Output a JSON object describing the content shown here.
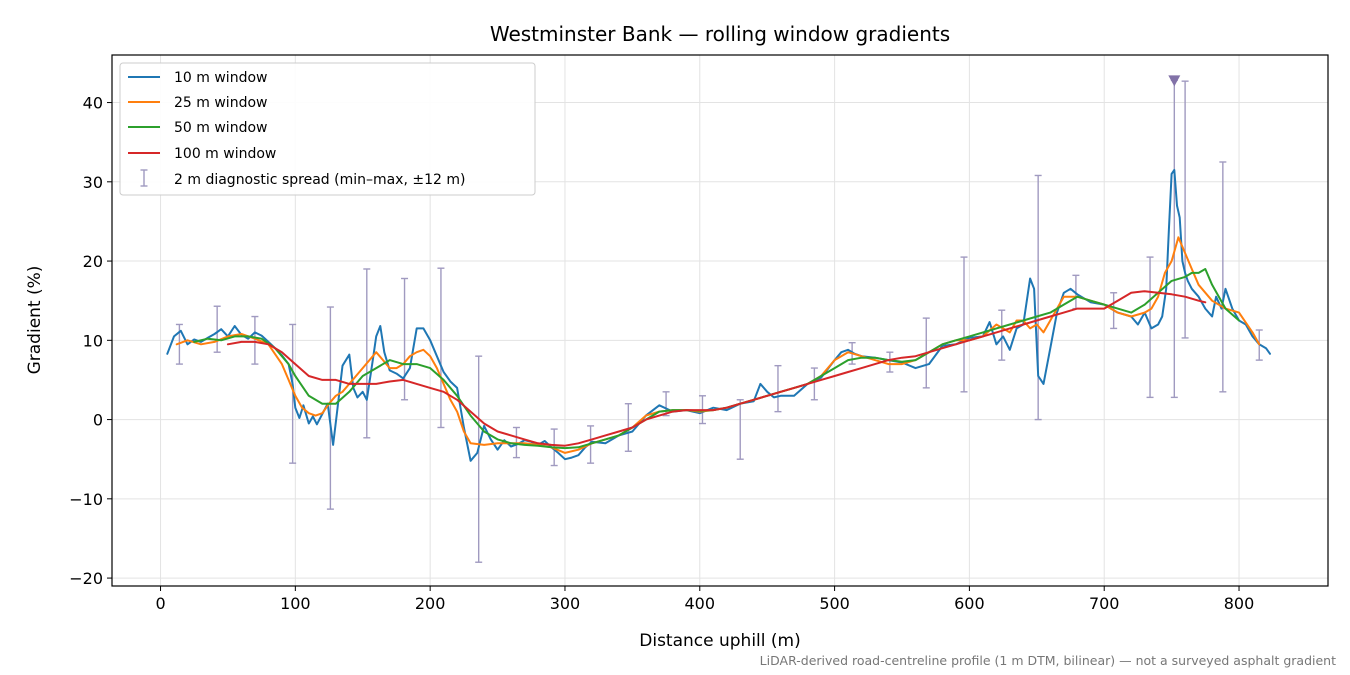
{
  "chart_data": {
    "type": "line",
    "title": "Westminster Bank — rolling window gradients",
    "xlabel": "Distance uphill (m)",
    "ylabel": "Gradient (%)",
    "footnote": "LiDAR-derived road-centreline profile (1 m DTM, bilinear) — not a surveyed asphalt gradient",
    "xlim": [
      -36,
      866
    ],
    "ylim": [
      -21,
      46
    ],
    "xticks": [
      0,
      100,
      200,
      300,
      400,
      500,
      600,
      700,
      800
    ],
    "yticks": [
      -20,
      -10,
      0,
      10,
      20,
      30,
      40
    ],
    "grid": true,
    "legend_position": "upper-left",
    "series": [
      {
        "name": "10 m window",
        "color": "#1f77b4",
        "x": [
          5,
          10,
          15,
          20,
          25,
          30,
          35,
          40,
          45,
          50,
          55,
          60,
          65,
          70,
          75,
          80,
          85,
          90,
          95,
          98,
          100,
          103,
          106,
          110,
          113,
          116,
          120,
          124,
          128,
          131,
          135,
          140,
          143,
          146,
          150,
          153,
          157,
          160,
          163,
          166,
          170,
          175,
          180,
          185,
          190,
          195,
          200,
          205,
          210,
          215,
          220,
          225,
          230,
          235,
          240,
          245,
          250,
          255,
          260,
          265,
          270,
          275,
          280,
          285,
          290,
          295,
          300,
          305,
          310,
          315,
          320,
          330,
          340,
          350,
          360,
          370,
          380,
          390,
          400,
          410,
          420,
          430,
          440,
          445,
          450,
          455,
          460,
          470,
          480,
          490,
          500,
          505,
          510,
          515,
          520,
          530,
          540,
          550,
          560,
          570,
          580,
          590,
          600,
          610,
          615,
          620,
          625,
          630,
          635,
          640,
          645,
          648,
          651,
          655,
          660,
          665,
          670,
          675,
          680,
          690,
          700,
          710,
          720,
          725,
          730,
          735,
          740,
          743,
          746,
          748,
          750,
          752,
          754,
          756,
          758,
          760,
          762,
          765,
          770,
          775,
          780,
          783,
          787,
          790,
          795,
          800,
          805,
          810,
          815,
          820,
          823
        ],
        "y": [
          8.3,
          10.5,
          11.2,
          9.5,
          10.1,
          9.8,
          10.3,
          10.8,
          11.4,
          10.5,
          11.8,
          10.7,
          10.2,
          11.0,
          10.6,
          9.8,
          9.0,
          8.1,
          7.0,
          4.5,
          1.5,
          0.2,
          1.8,
          -0.5,
          0.4,
          -0.6,
          0.7,
          2.0,
          -3.2,
          1.0,
          6.8,
          8.2,
          4.0,
          2.8,
          3.5,
          2.5,
          7.0,
          10.5,
          11.8,
          8.5,
          6.2,
          5.8,
          5.2,
          6.5,
          11.5,
          11.5,
          10.0,
          8.0,
          6.0,
          4.8,
          4.0,
          -1.0,
          -5.2,
          -4.2,
          -0.8,
          -2.5,
          -3.8,
          -2.6,
          -3.4,
          -3.1,
          -2.6,
          -2.8,
          -3.2,
          -2.7,
          -3.5,
          -4.2,
          -5.0,
          -4.8,
          -4.5,
          -3.5,
          -2.8,
          -3.0,
          -2.0,
          -1.5,
          0.5,
          1.8,
          1.0,
          1.2,
          0.8,
          1.5,
          1.2,
          2.0,
          2.3,
          4.5,
          3.5,
          2.8,
          3.0,
          3.0,
          4.5,
          5.3,
          7.5,
          8.5,
          8.8,
          8.3,
          8.0,
          7.8,
          7.5,
          7.2,
          6.5,
          7.0,
          9.3,
          9.5,
          10.3,
          10.5,
          12.3,
          9.5,
          10.5,
          8.8,
          11.5,
          12.0,
          17.8,
          16.5,
          5.5,
          4.5,
          9.0,
          13.5,
          16.0,
          16.5,
          15.8,
          14.8,
          14.5,
          13.5,
          13.0,
          12.0,
          13.5,
          11.5,
          12.0,
          13.0,
          16.5,
          24.0,
          31.0,
          31.5,
          27.0,
          25.5,
          20.0,
          18.5,
          17.5,
          16.5,
          15.5,
          14.0,
          13.0,
          15.5,
          14.0,
          16.5,
          14.0,
          12.5,
          12.0,
          10.5,
          9.5,
          9.0,
          8.3
        ]
      },
      {
        "name": "25 m window",
        "color": "#ff7f0e",
        "x": [
          12,
          20,
          30,
          40,
          50,
          60,
          70,
          80,
          90,
          95,
          100,
          105,
          110,
          115,
          120,
          125,
          130,
          135,
          140,
          145,
          150,
          155,
          160,
          165,
          170,
          175,
          180,
          185,
          190,
          195,
          200,
          205,
          210,
          215,
          220,
          225,
          230,
          240,
          250,
          260,
          270,
          280,
          290,
          300,
          310,
          320,
          330,
          340,
          350,
          360,
          370,
          380,
          390,
          400,
          410,
          420,
          430,
          440,
          450,
          460,
          470,
          480,
          490,
          500,
          510,
          520,
          530,
          540,
          550,
          560,
          570,
          580,
          590,
          600,
          610,
          620,
          630,
          635,
          640,
          645,
          650,
          655,
          660,
          665,
          670,
          680,
          690,
          700,
          710,
          720,
          730,
          735,
          740,
          745,
          750,
          755,
          760,
          765,
          770,
          780,
          790,
          800,
          810,
          815
        ],
        "y": [
          9.5,
          10.0,
          9.5,
          9.8,
          10.5,
          10.8,
          10.2,
          9.5,
          7.0,
          5.0,
          3.0,
          1.5,
          0.8,
          0.5,
          0.8,
          2.0,
          3.0,
          3.5,
          4.5,
          5.5,
          6.5,
          7.5,
          8.5,
          7.5,
          6.5,
          6.5,
          7.0,
          8.0,
          8.5,
          8.8,
          8.0,
          6.5,
          4.5,
          2.5,
          1.0,
          -1.5,
          -3.0,
          -3.2,
          -3.0,
          -3.0,
          -3.0,
          -3.2,
          -3.5,
          -4.2,
          -3.8,
          -3.0,
          -2.5,
          -2.0,
          -1.0,
          0.5,
          1.0,
          1.2,
          1.2,
          1.0,
          1.2,
          1.5,
          2.0,
          2.5,
          3.0,
          3.5,
          4.0,
          4.5,
          5.5,
          7.5,
          8.5,
          8.0,
          7.5,
          7.0,
          7.0,
          7.5,
          8.5,
          9.5,
          10.0,
          10.0,
          10.5,
          12.0,
          11.0,
          12.5,
          12.5,
          11.5,
          12.0,
          11.0,
          12.5,
          14.0,
          15.5,
          15.5,
          15.0,
          14.5,
          13.5,
          13.0,
          13.5,
          14.0,
          15.5,
          18.5,
          20.0,
          23.0,
          21.0,
          19.0,
          17.0,
          15.0,
          14.0,
          13.5,
          11.0,
          9.5
        ]
      },
      {
        "name": "50 m window",
        "color": "#2ca02c",
        "x": [
          25,
          35,
          45,
          55,
          65,
          75,
          85,
          95,
          100,
          110,
          120,
          130,
          140,
          150,
          160,
          170,
          180,
          190,
          200,
          210,
          220,
          230,
          240,
          250,
          260,
          270,
          280,
          290,
          300,
          310,
          320,
          330,
          340,
          350,
          360,
          370,
          380,
          390,
          400,
          410,
          420,
          430,
          440,
          450,
          460,
          470,
          480,
          490,
          500,
          510,
          520,
          530,
          540,
          550,
          560,
          570,
          580,
          590,
          600,
          610,
          620,
          630,
          640,
          650,
          660,
          670,
          680,
          690,
          700,
          710,
          720,
          730,
          740,
          750,
          760,
          765,
          770,
          775,
          780,
          790,
          800
        ],
        "y": [
          9.8,
          10.2,
          10.0,
          10.5,
          10.5,
          10.2,
          9.0,
          7.0,
          5.5,
          3.0,
          2.0,
          2.0,
          3.5,
          5.5,
          6.5,
          7.5,
          7.0,
          7.0,
          6.5,
          5.0,
          3.0,
          0.5,
          -1.5,
          -2.5,
          -3.0,
          -3.2,
          -3.3,
          -3.5,
          -3.6,
          -3.5,
          -3.0,
          -2.5,
          -2.0,
          -1.0,
          0.0,
          1.0,
          1.2,
          1.2,
          1.1,
          1.2,
          1.5,
          2.0,
          2.5,
          3.0,
          3.5,
          4.0,
          4.5,
          5.5,
          6.5,
          7.5,
          7.8,
          7.8,
          7.5,
          7.3,
          7.5,
          8.5,
          9.5,
          10.0,
          10.5,
          11.0,
          11.5,
          12.0,
          12.5,
          13.0,
          13.5,
          14.5,
          15.5,
          15.0,
          14.5,
          14.0,
          13.5,
          14.5,
          16.0,
          17.5,
          18.0,
          18.5,
          18.5,
          19.0,
          17.0,
          14.0,
          12.5
        ]
      },
      {
        "name": "100 m window",
        "color": "#d62728",
        "x": [
          50,
          60,
          70,
          80,
          90,
          100,
          110,
          120,
          130,
          140,
          150,
          160,
          170,
          180,
          190,
          200,
          210,
          220,
          230,
          240,
          250,
          260,
          270,
          280,
          290,
          300,
          310,
          320,
          330,
          340,
          350,
          360,
          370,
          380,
          390,
          400,
          410,
          420,
          430,
          440,
          450,
          460,
          470,
          480,
          490,
          500,
          510,
          520,
          530,
          540,
          550,
          560,
          570,
          580,
          590,
          600,
          610,
          620,
          630,
          640,
          650,
          660,
          670,
          680,
          690,
          700,
          710,
          720,
          730,
          740,
          750,
          760,
          770,
          775
        ],
        "y": [
          9.5,
          9.8,
          9.8,
          9.5,
          8.5,
          7.0,
          5.5,
          5.0,
          5.0,
          4.5,
          4.5,
          4.5,
          4.8,
          5.0,
          4.5,
          4.0,
          3.5,
          2.5,
          1.0,
          -0.5,
          -1.5,
          -2.0,
          -2.5,
          -3.0,
          -3.2,
          -3.3,
          -3.0,
          -2.5,
          -2.0,
          -1.5,
          -1.0,
          0.0,
          0.5,
          1.0,
          1.2,
          1.2,
          1.2,
          1.5,
          2.0,
          2.5,
          3.0,
          3.5,
          4.0,
          4.5,
          5.0,
          5.5,
          6.0,
          6.5,
          7.0,
          7.5,
          7.8,
          8.0,
          8.5,
          9.0,
          9.5,
          10.0,
          10.5,
          11.0,
          11.5,
          12.0,
          12.5,
          13.0,
          13.5,
          14.0,
          14.0,
          14.0,
          15.0,
          16.0,
          16.2,
          16.0,
          15.8,
          15.5,
          15.0,
          14.8
        ]
      }
    ],
    "errorbars": {
      "name": "2 m diagnostic spread (min–max, ±12 m)",
      "color": "#a09ac0",
      "points": [
        {
          "x": 14,
          "min": 7.0,
          "max": 12.0
        },
        {
          "x": 42,
          "min": 8.5,
          "max": 14.3
        },
        {
          "x": 70,
          "min": 7.0,
          "max": 13.0
        },
        {
          "x": 98,
          "min": -5.5,
          "max": 12.0
        },
        {
          "x": 126,
          "min": -11.3,
          "max": 14.2
        },
        {
          "x": 153,
          "min": -2.3,
          "max": 19.0
        },
        {
          "x": 181,
          "min": 2.5,
          "max": 17.8
        },
        {
          "x": 208,
          "min": -1.0,
          "max": 19.1
        },
        {
          "x": 236,
          "min": -18.0,
          "max": 8.0
        },
        {
          "x": 264,
          "min": -4.8,
          "max": -1.0
        },
        {
          "x": 292,
          "min": -5.8,
          "max": -1.2
        },
        {
          "x": 319,
          "min": -5.5,
          "max": -0.8
        },
        {
          "x": 347,
          "min": -4.0,
          "max": 2.0
        },
        {
          "x": 375,
          "min": 0.5,
          "max": 3.5
        },
        {
          "x": 402,
          "min": -0.5,
          "max": 3.0
        },
        {
          "x": 430,
          "min": -5.0,
          "max": 2.5
        },
        {
          "x": 458,
          "min": 1.0,
          "max": 6.8
        },
        {
          "x": 485,
          "min": 2.5,
          "max": 6.5
        },
        {
          "x": 513,
          "min": 7.0,
          "max": 9.7
        },
        {
          "x": 541,
          "min": 6.0,
          "max": 8.5
        },
        {
          "x": 568,
          "min": 4.0,
          "max": 12.8
        },
        {
          "x": 596,
          "min": 3.5,
          "max": 20.5
        },
        {
          "x": 624,
          "min": 7.5,
          "max": 13.8
        },
        {
          "x": 651,
          "min": 0.0,
          "max": 30.8
        },
        {
          "x": 679,
          "min": 14.0,
          "max": 18.2
        },
        {
          "x": 707,
          "min": 11.5,
          "max": 16.0
        },
        {
          "x": 734,
          "min": 2.8,
          "max": 20.5
        },
        {
          "x": 752,
          "min": 2.8,
          "max": 42.8
        },
        {
          "x": 760,
          "min": 10.3,
          "max": 42.7
        },
        {
          "x": 788,
          "min": 3.5,
          "max": 32.5
        },
        {
          "x": 815,
          "min": 7.5,
          "max": 11.3
        }
      ]
    },
    "marker": {
      "x": 752,
      "y": 42.8,
      "shape": "triangle-down",
      "color": "#8272a8"
    }
  }
}
